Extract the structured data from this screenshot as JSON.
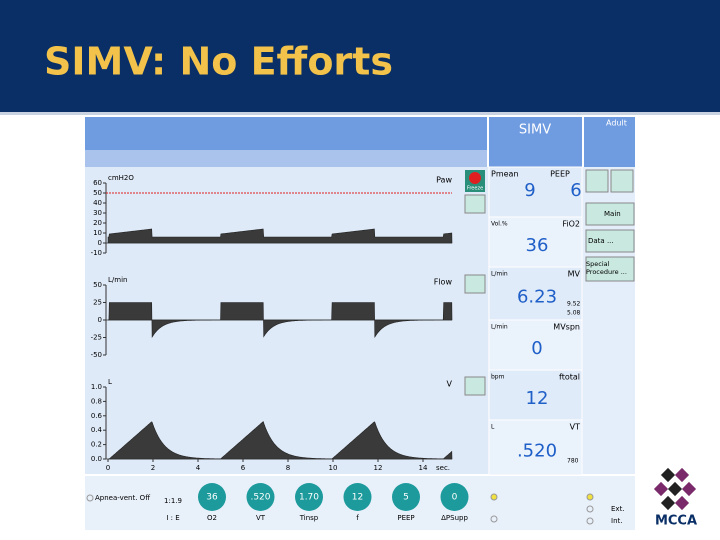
{
  "slide": {
    "title": "SIMV: No Efforts"
  },
  "header": {
    "mode": "SIMV",
    "patient": "Adult"
  },
  "waveforms": [
    {
      "unit": "cmH2O",
      "label": "Paw",
      "yticks": [
        "60",
        "50",
        "40",
        "30",
        "20",
        "10",
        "0",
        "-10"
      ]
    },
    {
      "unit": "L/min",
      "label": "Flow",
      "yticks": [
        "50",
        "25",
        "0",
        "-25",
        "-50"
      ]
    },
    {
      "unit": "L",
      "label": "V",
      "yticks": [
        "1.0",
        "0.8",
        "0.6",
        "0.4",
        "0.2",
        "0.0"
      ]
    }
  ],
  "xticks": [
    "0",
    "2",
    "4",
    "6",
    "8",
    "10",
    "12",
    "14"
  ],
  "x_unit": "sec.",
  "freeze": "Freeze",
  "readouts": [
    {
      "left": "Pmean",
      "right": "PEEP",
      "values": [
        "9",
        "6"
      ]
    },
    {
      "left": "Vol.%",
      "right": "FiO2",
      "values": [
        "36"
      ]
    },
    {
      "left": "L/min",
      "right": "MV",
      "values": [
        "6.23"
      ],
      "small": [
        "9.52",
        "5.08"
      ]
    },
    {
      "left": "L/min",
      "right": "MVspn",
      "values": [
        "0"
      ]
    },
    {
      "left": "bpm",
      "right": "ftotal",
      "values": [
        "12"
      ]
    },
    {
      "left": "L",
      "right": "VT",
      "values": [
        ".520"
      ],
      "small": [
        "780"
      ]
    }
  ],
  "menu": [
    "Main",
    "Data ...",
    "Special Procedure ..."
  ],
  "footer": {
    "apnea": "Apnea-vent. Off",
    "ie_value": "1:1.9",
    "ie_label": "I : E",
    "settings": [
      {
        "value": "36",
        "label": "O2"
      },
      {
        "value": ".520",
        "label": "VT"
      },
      {
        "value": "1.70",
        "label": "Tinsp"
      },
      {
        "value": "12",
        "label": "f"
      },
      {
        "value": "5",
        "label": "PEEP"
      },
      {
        "value": "0",
        "label": "ΔPSupp"
      }
    ],
    "ext": "Ext.",
    "int": "Int."
  },
  "logo": "MCCA"
}
